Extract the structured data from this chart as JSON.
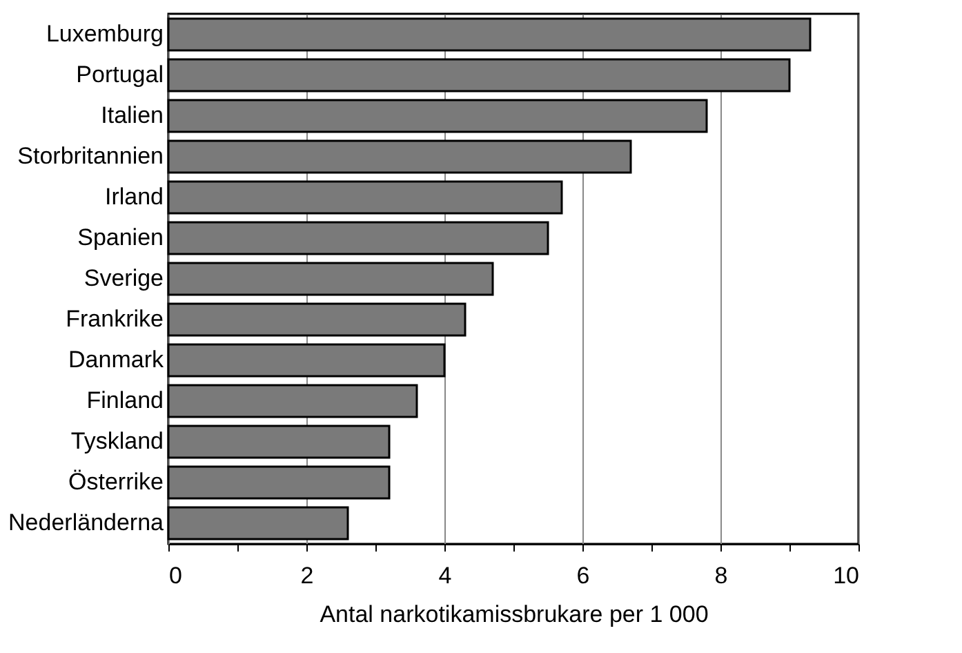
{
  "chart_data": {
    "type": "bar",
    "orientation": "horizontal",
    "xlabel": "Antal narkotikamissbrukare per 1 000",
    "categories": [
      "Luxemburg",
      "Portugal",
      "Italien",
      "Storbritannien",
      "Irland",
      "Spanien",
      "Sverige",
      "Frankrike",
      "Danmark",
      "Finland",
      "Tyskland",
      "Österrike",
      "Nederländerna"
    ],
    "values": [
      9.3,
      9.0,
      7.8,
      6.7,
      5.7,
      5.5,
      4.7,
      4.3,
      4.0,
      3.6,
      3.2,
      3.2,
      2.6
    ],
    "color": "#7a7a7a",
    "xlim": [
      0,
      10
    ],
    "xticks": [
      0,
      {
        "value": 1,
        "label": null
      },
      2,
      {
        "value": 3,
        "label": null
      },
      4,
      {
        "value": 5,
        "label": null
      },
      6,
      {
        "value": 7,
        "label": null
      },
      8,
      {
        "value": 9,
        "label": null
      },
      10
    ],
    "grid": "x"
  }
}
